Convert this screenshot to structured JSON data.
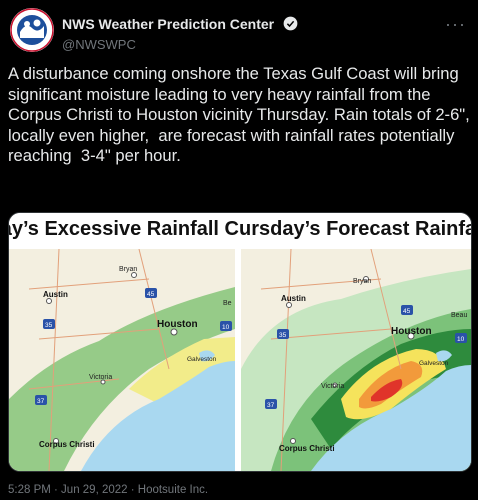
{
  "account": {
    "display_name": "NWS Weather Prediction Center",
    "handle": "@NWSWPC",
    "avatar_text": "NATIONAL WEATHER SERVICE"
  },
  "tweet": {
    "text": "A disturbance coming onshore the Texas Gulf Coast will bring significant moisture leading to very heavy rainfall from the Corpus Christi to Houston vicinity Thursday. Rain totals of 2-6\", locally even higher,  are forecast with rainfall rates potentially reaching  3-4\" per hour."
  },
  "media": {
    "left_title": "lay’s Excessive Rainfall C",
    "right_title": "ursday’s Forecast Rainfa",
    "left_map_labels": {
      "bryan": "Bryan",
      "austin": "Austin",
      "houston": "Houston",
      "galveston": "Galveston",
      "victoria": "Victoria",
      "corpus": "Corpus Christi",
      "hwy45": "45",
      "hwy10": "10",
      "hwy35": "35",
      "hwy37": "37",
      "edge": "Be"
    },
    "right_map_labels": {
      "bryan": "Bryan",
      "austin": "Austin",
      "houston": "Houston",
      "galveston": "Galveston",
      "victoria": "Victoria",
      "corpus": "Corpus Christi",
      "beaumont": "Beau",
      "hwy45": "45",
      "hwy10": "10",
      "hwy35": "35",
      "hwy37": "37"
    },
    "colors": {
      "land": "#f3efe0",
      "water": "#a9d8f0",
      "outlook_green": "#8cc77e",
      "outlook_yellow": "#f2ec8a",
      "qpf_light": "#c6e6c1",
      "qpf_mid": "#7cc27a",
      "qpf_dark": "#2e8b3d",
      "qpf_yellow": "#f5e35c",
      "qpf_orange": "#f29a3b",
      "qpf_red": "#e0342a"
    }
  },
  "footer": {
    "timestamp": "5:28 PM · Jun 29, 2022 · Hootsuite Inc."
  }
}
